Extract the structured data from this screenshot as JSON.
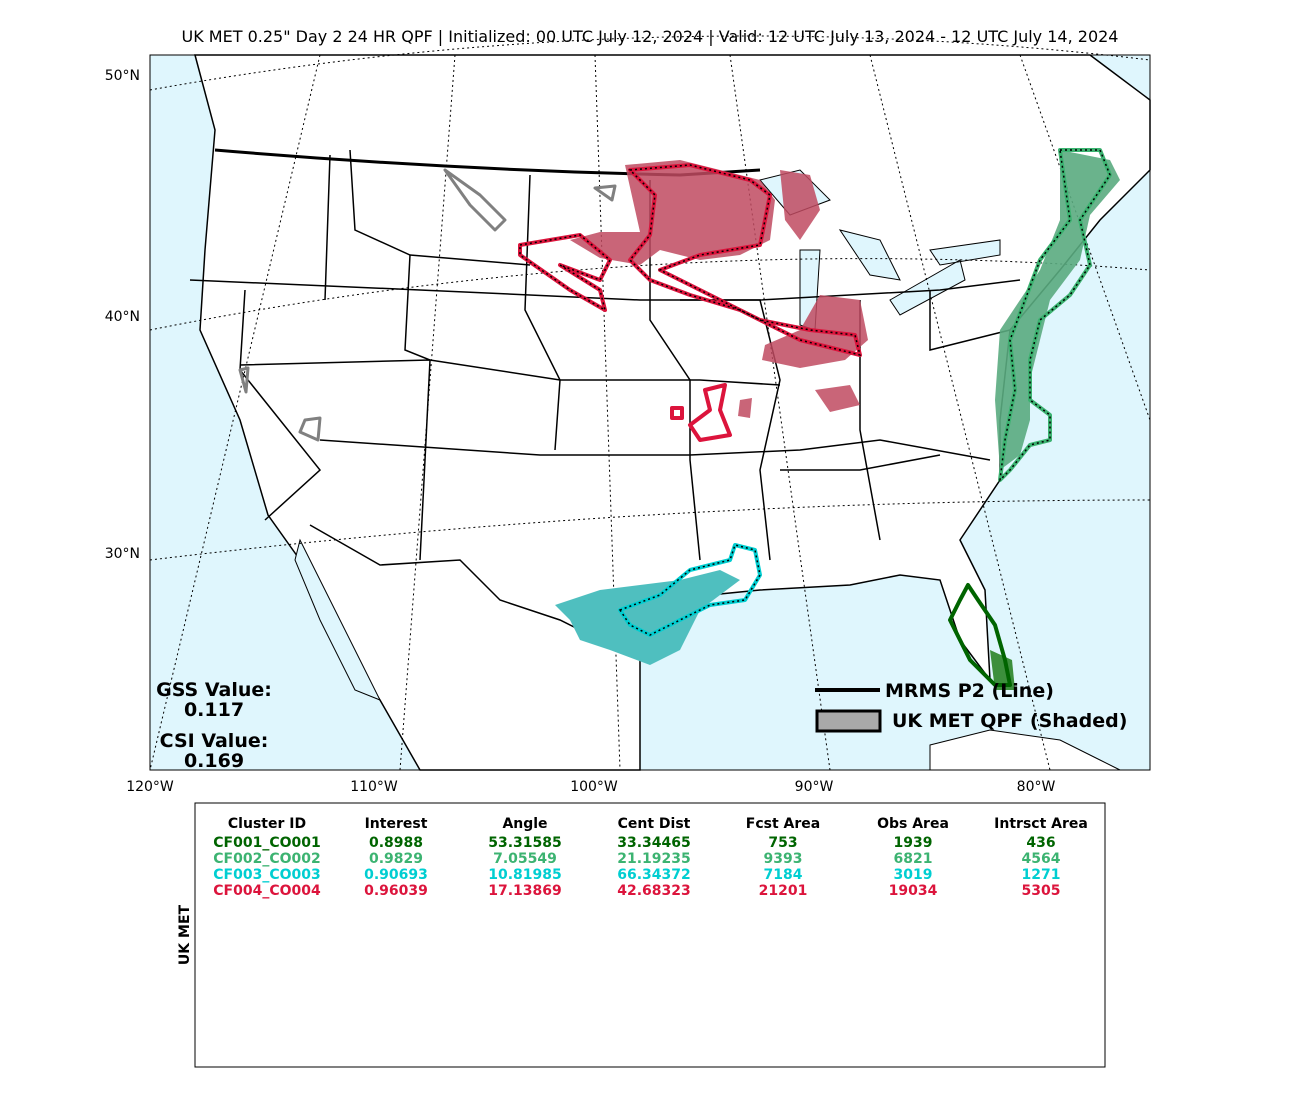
{
  "title": "UK MET 0.25\" Day 2 24 HR QPF | Initialized: 00 UTC July 12, 2024 | Valid: 12 UTC July 13, 2024 - 12 UTC July 14, 2024",
  "map": {
    "lat_labels": [
      "50°N",
      "40°N",
      "30°N"
    ],
    "lon_labels": [
      "120°W",
      "110°W",
      "100°W",
      "90°W",
      "80°W"
    ]
  },
  "stats": {
    "gss_label": "GSS Value:",
    "gss": "0.117",
    "csi_label": "CSI Value:",
    "csi": "0.169"
  },
  "legend": [
    "MRMS P2 (Line)",
    "UK MET QPF (Shaded)"
  ],
  "table": {
    "side_label": "UK MET",
    "columns": [
      "Cluster ID",
      "Interest",
      "Angle",
      "Cent Dist",
      "Fcst Area",
      "Obs Area",
      "Intrsct Area"
    ],
    "row_colors": [
      "#006400",
      "#3cb371",
      "#00ced1",
      "#dc143c"
    ],
    "rows": [
      [
        "CF001_CO001",
        "0.8988",
        "53.31585",
        "33.34465",
        "753",
        "1939",
        "436"
      ],
      [
        "CF002_CO002",
        "0.9829",
        "7.05549",
        "21.19235",
        "9393",
        "6821",
        "4564"
      ],
      [
        "CF003_CO003",
        "0.90693",
        "10.81985",
        "66.34372",
        "7184",
        "3019",
        "1271"
      ],
      [
        "CF004_CO004",
        "0.96039",
        "17.13869",
        "42.68323",
        "21201",
        "19034",
        "5305"
      ]
    ]
  }
}
